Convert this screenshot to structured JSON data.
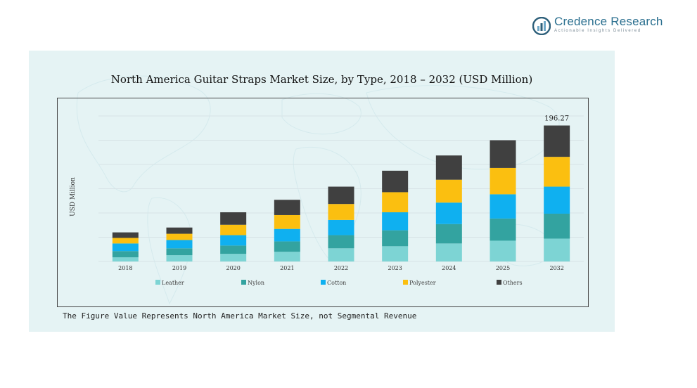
{
  "brand": {
    "name": "Credence Research",
    "tagline": "Actionable Insights Delivered",
    "colors": {
      "dark": "#2d5f7a",
      "light": "#6fa8c8"
    }
  },
  "footnote": "The Figure Value Represents North America Market Size, not Segmental Revenue",
  "chart_data": {
    "type": "bar",
    "stacked": true,
    "title": "North America Guitar Straps Market Size, by Type, 2018 – 2032 (USD Million)",
    "ylabel": "USD Million",
    "xlabel": "",
    "ylim": [
      0,
      210
    ],
    "grid": true,
    "legend": "bottom",
    "categories": [
      "2018",
      "2019",
      "2020",
      "2021",
      "2022",
      "2023",
      "2024",
      "2025",
      "2032"
    ],
    "series": [
      {
        "name": "Leather",
        "color": "#7dd4d4",
        "values": [
          6,
          9,
          11,
          14,
          19,
          22,
          26,
          30,
          33
        ]
      },
      {
        "name": "Nylon",
        "color": "#33a3a0",
        "values": [
          9,
          10,
          12,
          15,
          19,
          23,
          28,
          32,
          36
        ]
      },
      {
        "name": "Cotton",
        "color": "#0fb0f0",
        "values": [
          11,
          12,
          15,
          18,
          22,
          26,
          31,
          35,
          39
        ]
      },
      {
        "name": "Polyester",
        "color": "#fbbf10",
        "values": [
          8,
          9,
          15,
          20,
          23,
          29,
          33,
          38,
          43
        ]
      },
      {
        "name": "Others",
        "color": "#404040",
        "values": [
          8,
          9,
          18,
          22,
          25,
          31,
          35,
          40,
          45.27
        ]
      }
    ],
    "annotations": [
      {
        "category": "2032",
        "text": "196.27"
      }
    ]
  }
}
